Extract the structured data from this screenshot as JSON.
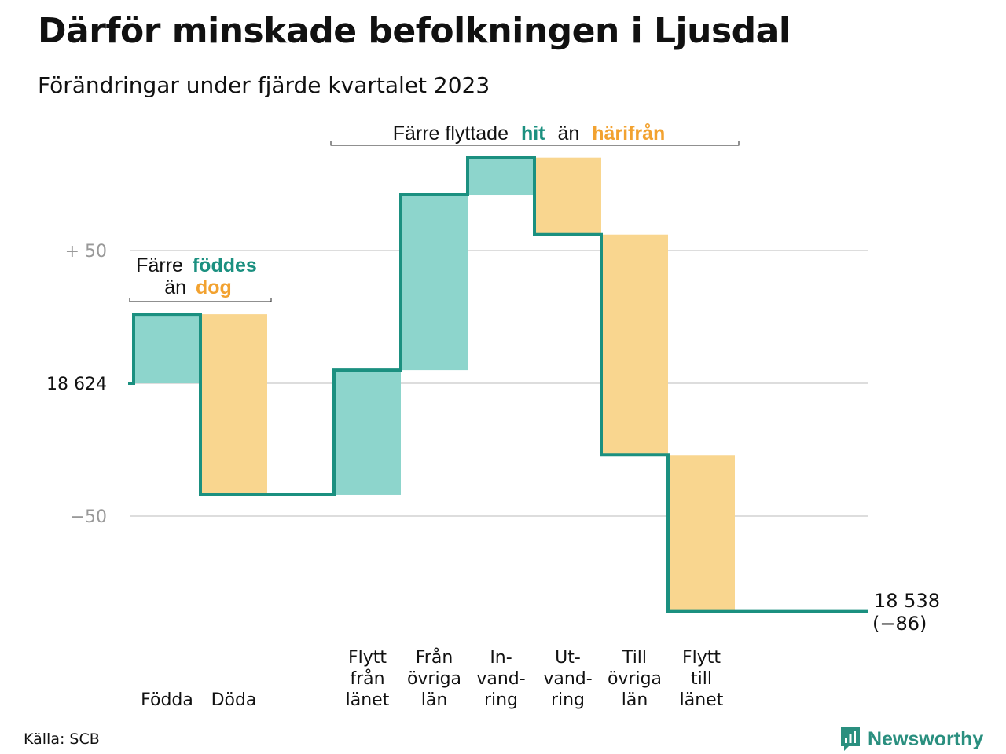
{
  "header": {
    "title": "Därför minskade befolkningen i Ljusdal",
    "subtitle": "Förändringar under fjärde kvartalet 2023"
  },
  "colors": {
    "increase": "#8dd5cc",
    "decrease": "#f9d68f",
    "line": "#1b9080",
    "dog_text": "#f2a230",
    "gridline": "#dddddd",
    "axis_text": "#999999"
  },
  "annotations": {
    "births_deaths": {
      "line1": "Färre",
      "line1_highlight": "föddes",
      "line2": "än",
      "line2_highlight": "dog"
    },
    "migration": {
      "prefix": "Färre flyttade",
      "highlight1": "hit",
      "middle": "än",
      "highlight2": "härifrån"
    }
  },
  "footer": {
    "source": "Källa: SCB",
    "brand": "Newsworthy",
    "brand_icon": "newsworthy-logo-icon"
  },
  "chart_data": {
    "type": "waterfall",
    "title": "Därför minskade befolkningen i Ljusdal",
    "subtitle": "Förändringar under fjärde kvartalet 2023",
    "start_value": 18624,
    "start_label": "18 624",
    "end_value": 18538,
    "end_label": "18 538",
    "net_change_label": "(−86)",
    "y_ticks": [
      {
        "offset": 50,
        "label": "+ 50"
      },
      {
        "offset": 0,
        "label": "18 624"
      },
      {
        "offset": -50,
        "label": "−50"
      }
    ],
    "ylim_offset": [
      -90,
      87
    ],
    "grid": true,
    "steps": [
      {
        "label": "Födda",
        "lines": [
          "Födda"
        ],
        "value": 26,
        "kind": "increase"
      },
      {
        "label": "Döda",
        "lines": [
          "Döda"
        ],
        "value": -68,
        "kind": "decrease"
      },
      {
        "label": "Flytt från länet",
        "lines": [
          "Flytt",
          "från",
          "länet"
        ],
        "value": 47,
        "kind": "increase"
      },
      {
        "label": "Från övriga län",
        "lines": [
          "Från",
          "övriga",
          "län"
        ],
        "value": 66,
        "kind": "increase"
      },
      {
        "label": "In-vandring",
        "lines": [
          "In-",
          "vand-",
          "ring"
        ],
        "value": 14,
        "kind": "increase"
      },
      {
        "label": "Ut-vandring",
        "lines": [
          "Ut-",
          "vand-",
          "ring"
        ],
        "value": -29,
        "kind": "decrease"
      },
      {
        "label": "Till övriga län",
        "lines": [
          "Till",
          "övriga",
          "län"
        ],
        "value": -83,
        "kind": "decrease"
      },
      {
        "label": "Flytt till länet",
        "lines": [
          "Flytt",
          "till",
          "länet"
        ],
        "value": -59,
        "kind": "decrease"
      }
    ]
  }
}
